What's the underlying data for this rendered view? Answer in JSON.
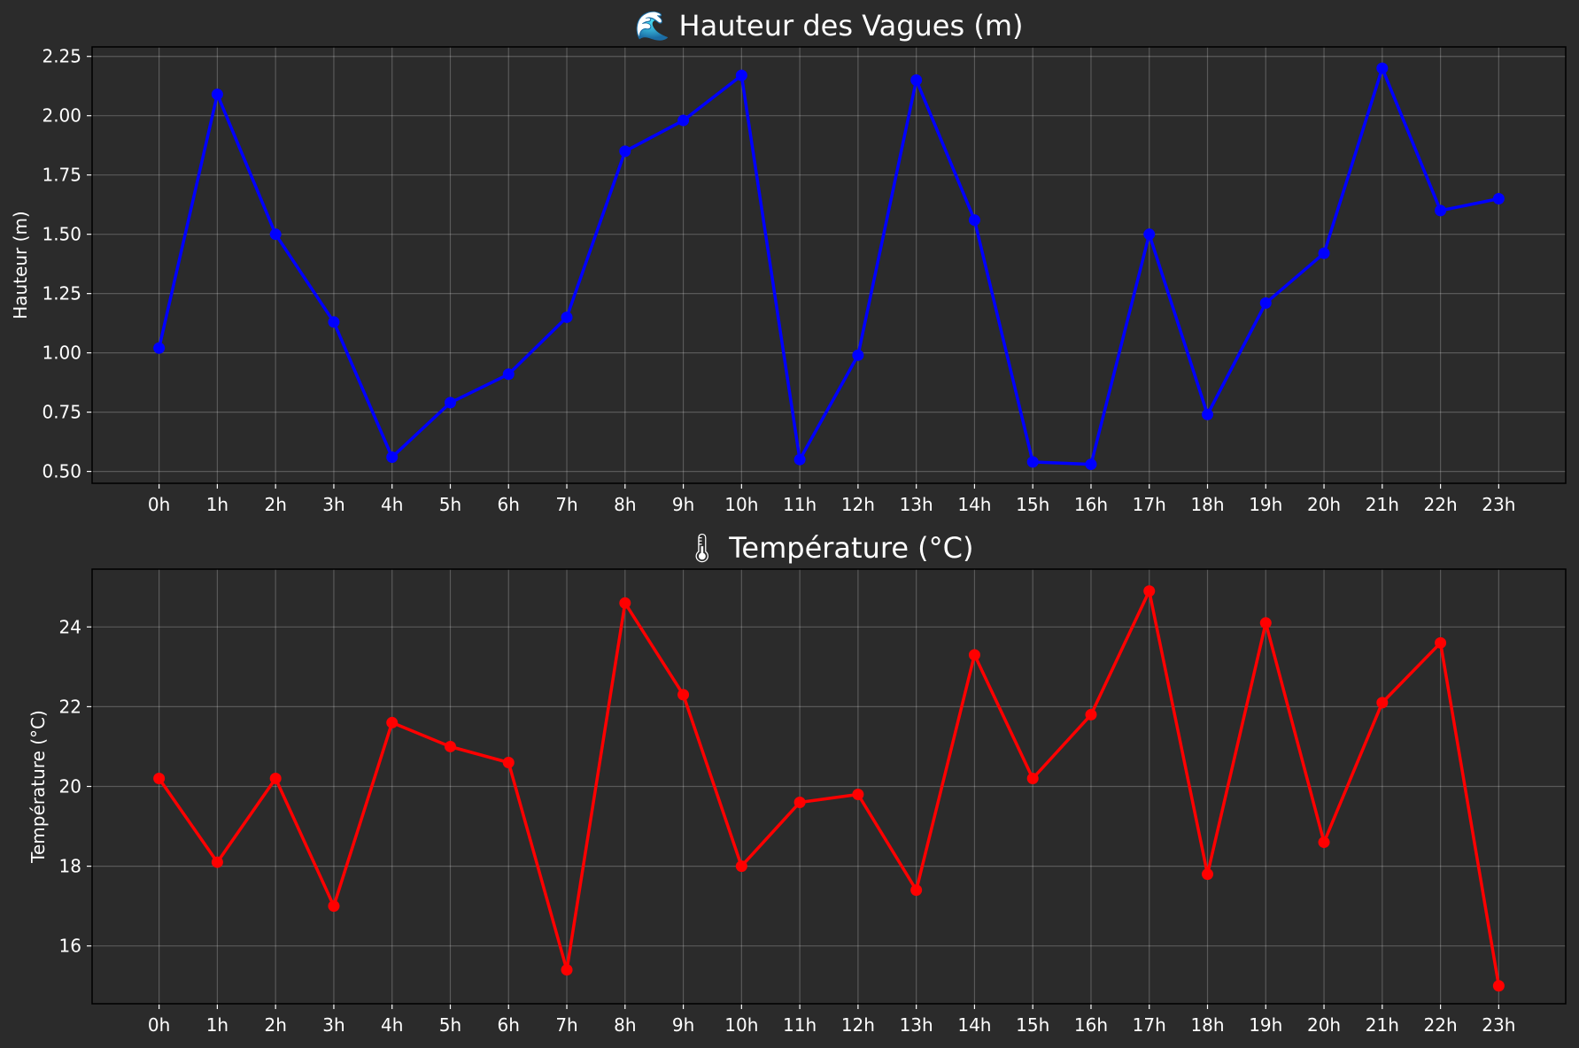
{
  "chart_data": [
    {
      "type": "line",
      "title": "🌊 Hauteur des Vagues (m)",
      "ylabel": "Hauteur (m)",
      "xlabel": "",
      "categories": [
        "0h",
        "1h",
        "2h",
        "3h",
        "4h",
        "5h",
        "6h",
        "7h",
        "8h",
        "9h",
        "10h",
        "11h",
        "12h",
        "13h",
        "14h",
        "15h",
        "16h",
        "17h",
        "18h",
        "19h",
        "20h",
        "21h",
        "22h",
        "23h"
      ],
      "series": [
        {
          "color": "#0000ff",
          "values": [
            1.02,
            2.09,
            1.5,
            1.13,
            0.56,
            0.79,
            0.91,
            1.15,
            1.85,
            1.98,
            2.17,
            0.55,
            0.99,
            2.15,
            1.56,
            0.54,
            0.53,
            1.5,
            0.74,
            1.21,
            1.42,
            2.2,
            1.6,
            1.65
          ]
        }
      ],
      "ylim": [
        0.45,
        2.29
      ],
      "yticks": [
        0.5,
        0.75,
        1.0,
        1.25,
        1.5,
        1.75,
        2.0,
        2.25
      ],
      "ytick_labels": [
        "0.50",
        "0.75",
        "1.00",
        "1.25",
        "1.50",
        "1.75",
        "2.00",
        "2.25"
      ],
      "grid": true
    },
    {
      "type": "line",
      "title": "🌡 Température (°C)",
      "ylabel": "Température (°C)",
      "xlabel": "",
      "categories": [
        "0h",
        "1h",
        "2h",
        "3h",
        "4h",
        "5h",
        "6h",
        "7h",
        "8h",
        "9h",
        "10h",
        "11h",
        "12h",
        "13h",
        "14h",
        "15h",
        "16h",
        "17h",
        "18h",
        "19h",
        "20h",
        "21h",
        "22h",
        "23h"
      ],
      "series": [
        {
          "color": "#ff0000",
          "values": [
            20.2,
            18.1,
            20.2,
            17.0,
            21.6,
            21.0,
            20.6,
            15.4,
            24.6,
            22.3,
            18.0,
            19.6,
            19.8,
            17.4,
            23.3,
            20.2,
            21.8,
            24.9,
            17.8,
            24.1,
            18.6,
            22.1,
            23.6,
            15.0
          ]
        }
      ],
      "ylim": [
        14.55,
        25.45
      ],
      "yticks": [
        16,
        18,
        20,
        22,
        24
      ],
      "ytick_labels": [
        "16",
        "18",
        "20",
        "22",
        "24"
      ],
      "grid": true
    }
  ]
}
